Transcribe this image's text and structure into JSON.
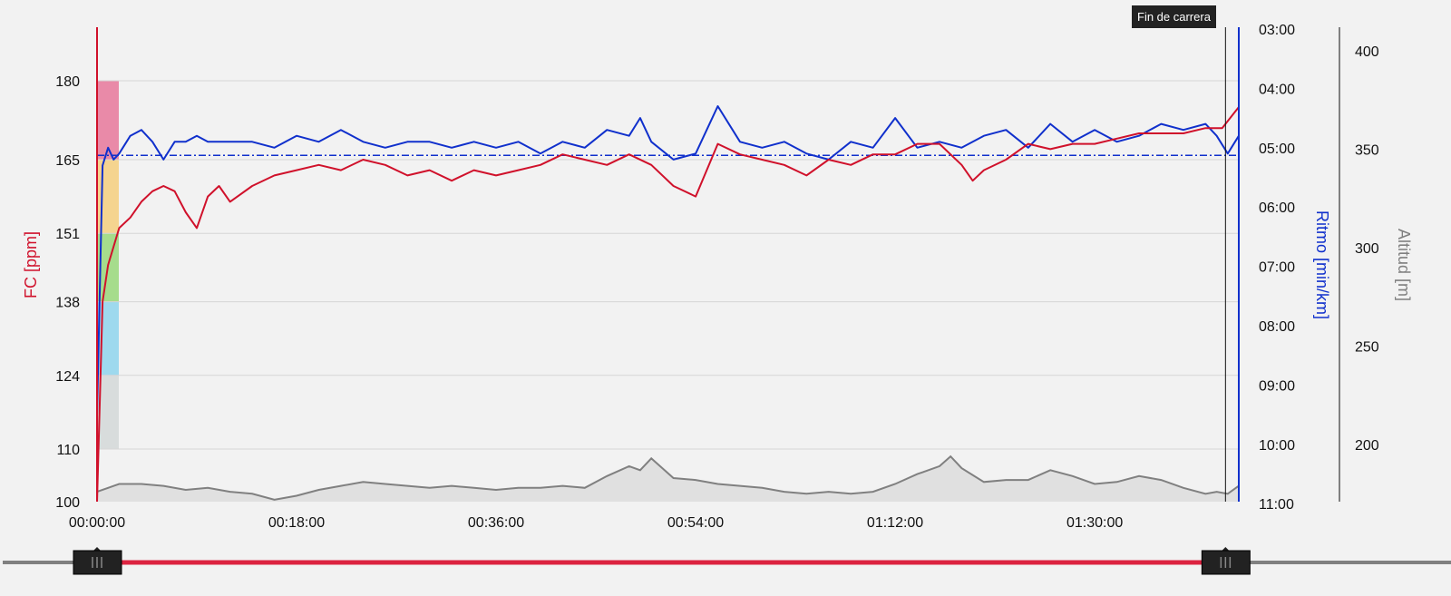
{
  "chart_data": {
    "type": "line",
    "xlabel": "",
    "x_ticks": [
      "00:00:00",
      "00:18:00",
      "00:36:00",
      "00:54:00",
      "01:12:00",
      "01:30:00"
    ],
    "x_range_min": [
      0,
      103
    ],
    "annotation": "Fin de carrera",
    "annotation_min": 101.8,
    "axes": {
      "hr": {
        "label": "FC [ppm]",
        "ticks": [
          "100",
          "110",
          "124",
          "138",
          "151",
          "165",
          "180"
        ],
        "range": [
          100,
          190
        ],
        "color": "#d0112b"
      },
      "pace": {
        "label": "Ritmo [min/km]",
        "ticks": [
          "03:00",
          "04:00",
          "05:00",
          "06:00",
          "07:00",
          "08:00",
          "09:00",
          "10:00",
          "11:00"
        ],
        "range": [
          3,
          11
        ],
        "color": "#1030cc",
        "average": 5.13
      },
      "alt": {
        "label": "Altitud [m]",
        "ticks": [
          "400",
          "350",
          "300",
          "250",
          "200"
        ],
        "range": [
          171,
          405
        ],
        "color": "#808080"
      }
    },
    "hr_zones": [
      {
        "from": 165,
        "to": 180,
        "color": "#e98aa8"
      },
      {
        "from": 151,
        "to": 165,
        "color": "#f5d48f"
      },
      {
        "from": 138,
        "to": 151,
        "color": "#a6dc8c"
      },
      {
        "from": 124,
        "to": 138,
        "color": "#9ed9ee"
      },
      {
        "from": 110,
        "to": 124,
        "color": "#d8dcdc"
      }
    ],
    "series": [
      {
        "name": "FC",
        "x": [
          0,
          0.5,
          1,
          2,
          3,
          4,
          5,
          6,
          7,
          8,
          9,
          10,
          11,
          12,
          14,
          16,
          18,
          20,
          22,
          24,
          26,
          28,
          30,
          32,
          34,
          36,
          38,
          40,
          42,
          44,
          46,
          48,
          50,
          52,
          54,
          56,
          58,
          60,
          62,
          64,
          66,
          68,
          70,
          72,
          74,
          76,
          78,
          79,
          80,
          82,
          84,
          86,
          88,
          90,
          92,
          94,
          96,
          98,
          100,
          101.5,
          103
        ],
        "values": [
          100,
          138,
          145,
          152,
          154,
          157,
          159,
          160,
          159,
          155,
          152,
          158,
          160,
          157,
          160,
          162,
          163,
          164,
          163,
          165,
          164,
          162,
          163,
          161,
          163,
          162,
          163,
          164,
          166,
          165,
          164,
          166,
          164,
          160,
          158,
          168,
          166,
          165,
          164,
          162,
          165,
          164,
          166,
          166,
          168,
          168,
          164,
          161,
          163,
          165,
          168,
          167,
          168,
          168,
          169,
          170,
          170,
          170,
          171,
          171,
          175
        ]
      },
      {
        "name": "Ritmo",
        "x": [
          0,
          0.5,
          1,
          1.5,
          2,
          3,
          4,
          5,
          6,
          7,
          8,
          9,
          10,
          12,
          14,
          16,
          18,
          20,
          22,
          24,
          26,
          28,
          30,
          32,
          34,
          36,
          38,
          40,
          42,
          44,
          46,
          48,
          49,
          50,
          52,
          54,
          56,
          58,
          60,
          62,
          64,
          66,
          68,
          70,
          72,
          74,
          76,
          78,
          80,
          82,
          84,
          86,
          88,
          90,
          92,
          94,
          96,
          98,
          100,
          101,
          102,
          103
        ],
        "values": [
          9.5,
          5.3,
          5.0,
          5.2,
          5.1,
          4.8,
          4.7,
          4.9,
          5.2,
          4.9,
          4.9,
          4.8,
          4.9,
          4.9,
          4.9,
          5.0,
          4.8,
          4.9,
          4.7,
          4.9,
          5.0,
          4.9,
          4.9,
          5.0,
          4.9,
          5.0,
          4.9,
          5.1,
          4.9,
          5.0,
          4.7,
          4.8,
          4.5,
          4.9,
          5.2,
          5.1,
          4.3,
          4.9,
          5.0,
          4.9,
          5.1,
          5.2,
          4.9,
          5.0,
          4.5,
          5.0,
          4.9,
          5.0,
          4.8,
          4.7,
          5.0,
          4.6,
          4.9,
          4.7,
          4.9,
          4.8,
          4.6,
          4.7,
          4.6,
          4.8,
          5.1,
          4.8
        ]
      },
      {
        "name": "Altitud",
        "x": [
          0,
          1,
          2,
          4,
          6,
          8,
          10,
          12,
          14,
          16,
          18,
          20,
          22,
          24,
          26,
          28,
          30,
          32,
          34,
          36,
          38,
          40,
          42,
          44,
          46,
          48,
          49,
          50,
          52,
          54,
          56,
          58,
          60,
          62,
          64,
          66,
          68,
          70,
          72,
          74,
          76,
          77,
          78,
          80,
          82,
          84,
          86,
          88,
          90,
          92,
          94,
          96,
          98,
          100,
          101,
          102,
          103
        ],
        "values": [
          176,
          178,
          180,
          180,
          179,
          177,
          178,
          176,
          175,
          172,
          174,
          177,
          179,
          181,
          180,
          179,
          178,
          179,
          178,
          177,
          178,
          178,
          179,
          178,
          184,
          189,
          187,
          193,
          183,
          182,
          180,
          179,
          178,
          176,
          175,
          176,
          175,
          176,
          180,
          185,
          189,
          194,
          188,
          181,
          182,
          182,
          187,
          184,
          180,
          181,
          184,
          182,
          178,
          175,
          176,
          175,
          179
        ]
      }
    ]
  },
  "slider": {
    "start_min": 0,
    "end_min": 101.8
  }
}
